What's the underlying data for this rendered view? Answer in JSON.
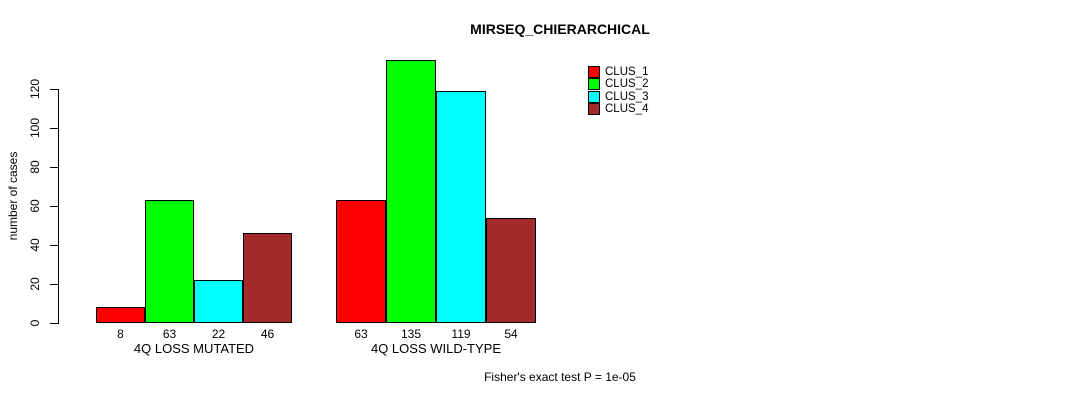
{
  "chart_data": {
    "type": "bar",
    "title": "MIRSEQ_CHIERARCHICAL",
    "ylabel": "number of cases",
    "xlabel": "",
    "ylim": [
      0,
      135
    ],
    "yticks": [
      0,
      20,
      40,
      60,
      80,
      100,
      120
    ],
    "grid": false,
    "legend_position": "top-right",
    "categories": [
      "4Q LOSS MUTATED",
      "4Q LOSS WILD-TYPE"
    ],
    "series": [
      {
        "name": "CLUS_1",
        "color": "#FF0000",
        "values": [
          8,
          63
        ]
      },
      {
        "name": "CLUS_2",
        "color": "#00FF00",
        "values": [
          63,
          135
        ]
      },
      {
        "name": "CLUS_3",
        "color": "#00FFFF",
        "values": [
          22,
          119
        ]
      },
      {
        "name": "CLUS_4",
        "color": "#A52A2A",
        "values": [
          46,
          54
        ]
      }
    ],
    "bar_value_labels_shown": true,
    "annotation": "Fisher's exact test P = 1e-05"
  },
  "colors": {
    "background": "#FFFFFF",
    "axis": "#000000",
    "text": "#000000"
  }
}
